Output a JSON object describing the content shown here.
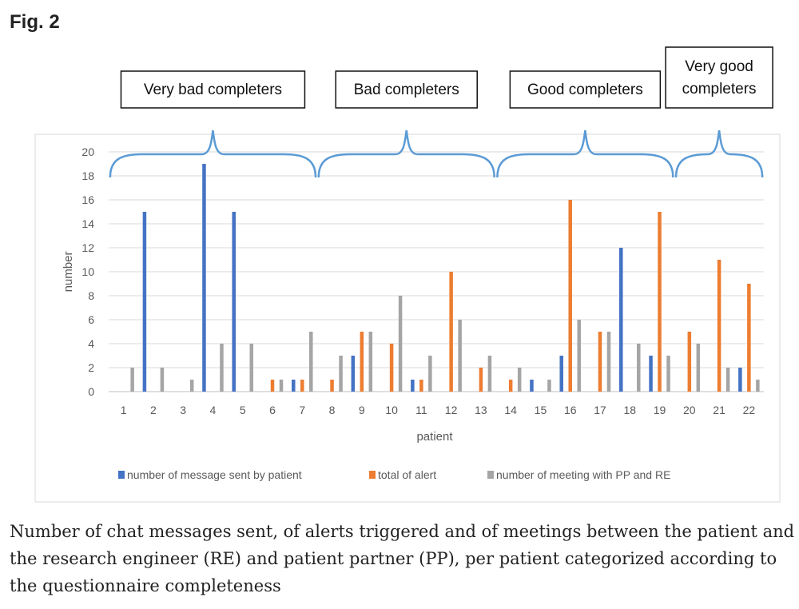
{
  "figure": {
    "label": "Fig. 2",
    "caption": "Number of chat messages sent, of alerts triggered and of meetings between the patient and the research engineer (RE) and patient partner (PP), per patient categorized according to the questionnaire completeness"
  },
  "groups": [
    {
      "label_lines": [
        "Very bad completers"
      ],
      "from": 1,
      "to": 7
    },
    {
      "label_lines": [
        "Bad completers"
      ],
      "from": 8,
      "to": 13
    },
    {
      "label_lines": [
        "Good completers"
      ],
      "from": 14,
      "to": 19
    },
    {
      "label_lines": [
        "Very good",
        "completers"
      ],
      "from": 20,
      "to": 22
    }
  ],
  "colors": {
    "messages": "#4472c4",
    "alerts": "#ed7d31",
    "meetings": "#a5a5a5",
    "brace": "#5b9bd5",
    "grid": "#d9d9d9"
  },
  "chart_data": {
    "type": "bar",
    "xlabel": "patient",
    "ylabel": "number",
    "ylim": [
      0,
      20
    ],
    "yticks": [
      0,
      2,
      4,
      6,
      8,
      10,
      12,
      14,
      16,
      18,
      20
    ],
    "grid": true,
    "legend_position": "bottom",
    "categories": [
      "1",
      "2",
      "3",
      "4",
      "5",
      "6",
      "7",
      "8",
      "9",
      "10",
      "11",
      "12",
      "13",
      "14",
      "15",
      "16",
      "17",
      "18",
      "19",
      "20",
      "21",
      "22"
    ],
    "series": [
      {
        "name": "number of message sent by patient",
        "color_key": "messages",
        "values": [
          0,
          15,
          0,
          19,
          15,
          0,
          1,
          0,
          3,
          0,
          1,
          0,
          0,
          0,
          1,
          3,
          0,
          12,
          3,
          0,
          0,
          2
        ]
      },
      {
        "name": "total of alert",
        "color_key": "alerts",
        "values": [
          0,
          0,
          0,
          0,
          0,
          1,
          1,
          1,
          5,
          4,
          1,
          10,
          2,
          1,
          0,
          16,
          5,
          0,
          15,
          5,
          11,
          9
        ]
      },
      {
        "name": "number of meeting with PP and RE",
        "color_key": "meetings",
        "values": [
          2,
          2,
          1,
          4,
          4,
          1,
          5,
          3,
          5,
          8,
          3,
          6,
          3,
          2,
          1,
          6,
          5,
          4,
          3,
          4,
          2,
          1
        ]
      }
    ]
  }
}
